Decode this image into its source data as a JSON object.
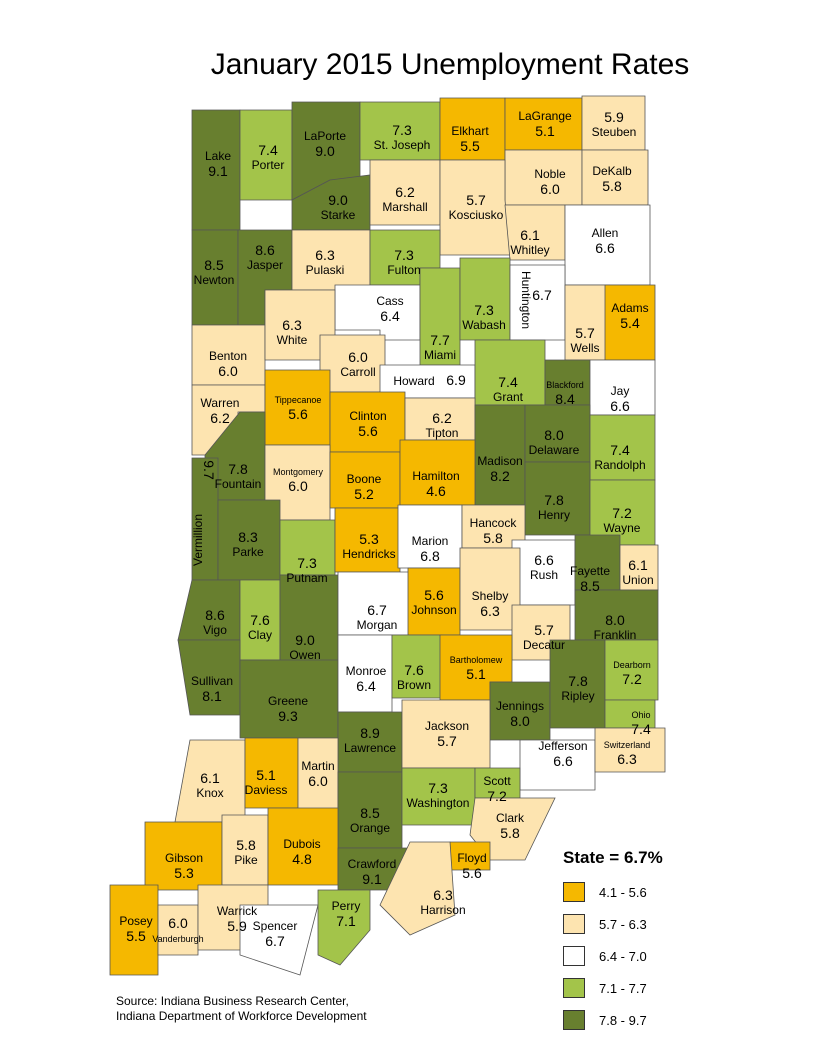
{
  "title": "January 2015 Unemployment Rates",
  "colors": {
    "c1": "#f5b800",
    "c2": "#fde4b0",
    "c3": "#ffffff",
    "c4": "#a3c44a",
    "c5": "#687f2f",
    "border": "#555555"
  },
  "legend": {
    "title": "State = 6.7%",
    "items": [
      {
        "label": "4.1 - 5.6",
        "cls": "c1"
      },
      {
        "label": "5.7 - 6.3",
        "cls": "c2"
      },
      {
        "label": "6.4 - 7.0",
        "cls": "c3"
      },
      {
        "label": "7.1 - 7.7",
        "cls": "c4"
      },
      {
        "label": "7.8 - 9.7",
        "cls": "c5"
      }
    ]
  },
  "source": {
    "line1": "Source: Indiana Business Research Center,",
    "line2": "Indiana Department of Workforce Development"
  },
  "counties": [
    {
      "name": "Lake",
      "rate": "9.1",
      "cls": "c5"
    },
    {
      "name": "Porter",
      "rate": "7.4",
      "cls": "c4"
    },
    {
      "name": "LaPorte",
      "rate": "9.0",
      "cls": "c5"
    },
    {
      "name": "St. Joseph",
      "rate": "7.3",
      "cls": "c4"
    },
    {
      "name": "Elkhart",
      "rate": "5.5",
      "cls": "c1"
    },
    {
      "name": "LaGrange",
      "rate": "5.1",
      "cls": "c1"
    },
    {
      "name": "Steuben",
      "rate": "5.9",
      "cls": "c2"
    },
    {
      "name": "Noble",
      "rate": "6.0",
      "cls": "c2"
    },
    {
      "name": "DeKalb",
      "rate": "5.8",
      "cls": "c2"
    },
    {
      "name": "Starke",
      "rate": "9.0",
      "cls": "c5"
    },
    {
      "name": "Marshall",
      "rate": "6.2",
      "cls": "c2"
    },
    {
      "name": "Kosciusko",
      "rate": "5.7",
      "cls": "c2"
    },
    {
      "name": "Whitley",
      "rate": "6.1",
      "cls": "c2"
    },
    {
      "name": "Allen",
      "rate": "6.6",
      "cls": "c3"
    },
    {
      "name": "Newton",
      "rate": "8.5",
      "cls": "c5"
    },
    {
      "name": "Jasper",
      "rate": "8.6",
      "cls": "c5"
    },
    {
      "name": "Pulaski",
      "rate": "6.3",
      "cls": "c2"
    },
    {
      "name": "Fulton",
      "rate": "7.3",
      "cls": "c4"
    },
    {
      "name": "Cass",
      "rate": "6.4",
      "cls": "c3"
    },
    {
      "name": "Miami",
      "rate": "7.7",
      "cls": "c4"
    },
    {
      "name": "Wabash",
      "rate": "7.3",
      "cls": "c4"
    },
    {
      "name": "Huntington",
      "rate": "6.7",
      "cls": "c3"
    },
    {
      "name": "Wells",
      "rate": "5.7",
      "cls": "c2"
    },
    {
      "name": "Adams",
      "rate": "5.4",
      "cls": "c1"
    },
    {
      "name": "Benton",
      "rate": "6.0",
      "cls": "c2"
    },
    {
      "name": "White",
      "rate": "6.3",
      "cls": "c2"
    },
    {
      "name": "Carroll",
      "rate": "6.0",
      "cls": "c2"
    },
    {
      "name": "Howard",
      "rate": "6.9",
      "cls": "c3"
    },
    {
      "name": "Grant",
      "rate": "7.4",
      "cls": "c4"
    },
    {
      "name": "Blackford",
      "rate": "8.4",
      "cls": "c5"
    },
    {
      "name": "Jay",
      "rate": "6.6",
      "cls": "c3"
    },
    {
      "name": "Warren",
      "rate": "6.2",
      "cls": "c2"
    },
    {
      "name": "Tippecanoe",
      "rate": "5.6",
      "cls": "c1"
    },
    {
      "name": "Clinton",
      "rate": "5.6",
      "cls": "c1"
    },
    {
      "name": "Tipton",
      "rate": "6.2",
      "cls": "c2"
    },
    {
      "name": "Madison",
      "rate": "8.2",
      "cls": "c5"
    },
    {
      "name": "Delaware",
      "rate": "8.0",
      "cls": "c5"
    },
    {
      "name": "Randolph",
      "rate": "7.4",
      "cls": "c4"
    },
    {
      "name": "Fountain",
      "rate": "7.8",
      "cls": "c5"
    },
    {
      "name": "Vermillion",
      "rate": "9.7",
      "cls": "c5"
    },
    {
      "name": "Montgomery",
      "rate": "6.0",
      "cls": "c2"
    },
    {
      "name": "Boone",
      "rate": "5.2",
      "cls": "c1"
    },
    {
      "name": "Hamilton",
      "rate": "4.6",
      "cls": "c1"
    },
    {
      "name": "Henry",
      "rate": "7.8",
      "cls": "c5"
    },
    {
      "name": "Wayne",
      "rate": "7.2",
      "cls": "c4"
    },
    {
      "name": "Parke",
      "rate": "8.3",
      "cls": "c5"
    },
    {
      "name": "Putnam",
      "rate": "7.3",
      "cls": "c4"
    },
    {
      "name": "Hendricks",
      "rate": "5.3",
      "cls": "c1"
    },
    {
      "name": "Marion",
      "rate": "6.8",
      "cls": "c3"
    },
    {
      "name": "Hancock",
      "rate": "5.8",
      "cls": "c2"
    },
    {
      "name": "Rush",
      "rate": "6.6",
      "cls": "c3"
    },
    {
      "name": "Fayette",
      "rate": "8.5",
      "cls": "c5"
    },
    {
      "name": "Union",
      "rate": "6.1",
      "cls": "c2"
    },
    {
      "name": "Vigo",
      "rate": "8.6",
      "cls": "c5"
    },
    {
      "name": "Clay",
      "rate": "7.6",
      "cls": "c4"
    },
    {
      "name": "Owen",
      "rate": "9.0",
      "cls": "c5"
    },
    {
      "name": "Morgan",
      "rate": "6.7",
      "cls": "c3"
    },
    {
      "name": "Johnson",
      "rate": "5.6",
      "cls": "c1"
    },
    {
      "name": "Shelby",
      "rate": "6.3",
      "cls": "c2"
    },
    {
      "name": "Decatur",
      "rate": "5.7",
      "cls": "c2"
    },
    {
      "name": "Franklin",
      "rate": "8.0",
      "cls": "c5"
    },
    {
      "name": "Sullivan",
      "rate": "8.1",
      "cls": "c5"
    },
    {
      "name": "Greene",
      "rate": "9.3",
      "cls": "c5"
    },
    {
      "name": "Monroe",
      "rate": "6.4",
      "cls": "c3"
    },
    {
      "name": "Brown",
      "rate": "7.6",
      "cls": "c4"
    },
    {
      "name": "Bartholomew",
      "rate": "5.1",
      "cls": "c1"
    },
    {
      "name": "Jennings",
      "rate": "8.0",
      "cls": "c5"
    },
    {
      "name": "Ripley",
      "rate": "7.8",
      "cls": "c5"
    },
    {
      "name": "Dearborn",
      "rate": "7.2",
      "cls": "c4"
    },
    {
      "name": "Ohio",
      "rate": "7.4",
      "cls": "c4"
    },
    {
      "name": "Lawrence",
      "rate": "8.9",
      "cls": "c5"
    },
    {
      "name": "Jackson",
      "rate": "5.7",
      "cls": "c2"
    },
    {
      "name": "Jefferson",
      "rate": "6.6",
      "cls": "c3"
    },
    {
      "name": "Switzerland",
      "rate": "6.3",
      "cls": "c2"
    },
    {
      "name": "Knox",
      "rate": "6.1",
      "cls": "c2"
    },
    {
      "name": "Daviess",
      "rate": "5.1",
      "cls": "c1"
    },
    {
      "name": "Martin",
      "rate": "6.0",
      "cls": "c2"
    },
    {
      "name": "Orange",
      "rate": "8.5",
      "cls": "c5"
    },
    {
      "name": "Washington",
      "rate": "7.3",
      "cls": "c4"
    },
    {
      "name": "Scott",
      "rate": "7.2",
      "cls": "c4"
    },
    {
      "name": "Clark",
      "rate": "5.8",
      "cls": "c2"
    },
    {
      "name": "Gibson",
      "rate": "5.3",
      "cls": "c1"
    },
    {
      "name": "Pike",
      "rate": "5.8",
      "cls": "c2"
    },
    {
      "name": "Dubois",
      "rate": "4.8",
      "cls": "c1"
    },
    {
      "name": "Crawford",
      "rate": "9.1",
      "cls": "c5"
    },
    {
      "name": "Floyd",
      "rate": "5.6",
      "cls": "c1"
    },
    {
      "name": "Harrison",
      "rate": "6.3",
      "cls": "c2"
    },
    {
      "name": "Posey",
      "rate": "5.5",
      "cls": "c1"
    },
    {
      "name": "Vanderburgh",
      "rate": "6.0",
      "cls": "c2"
    },
    {
      "name": "Warrick",
      "rate": "5.9",
      "cls": "c2"
    },
    {
      "name": "Spencer",
      "rate": "6.7",
      "cls": "c3"
    },
    {
      "name": "Perry",
      "rate": "7.1",
      "cls": "c4"
    }
  ]
}
